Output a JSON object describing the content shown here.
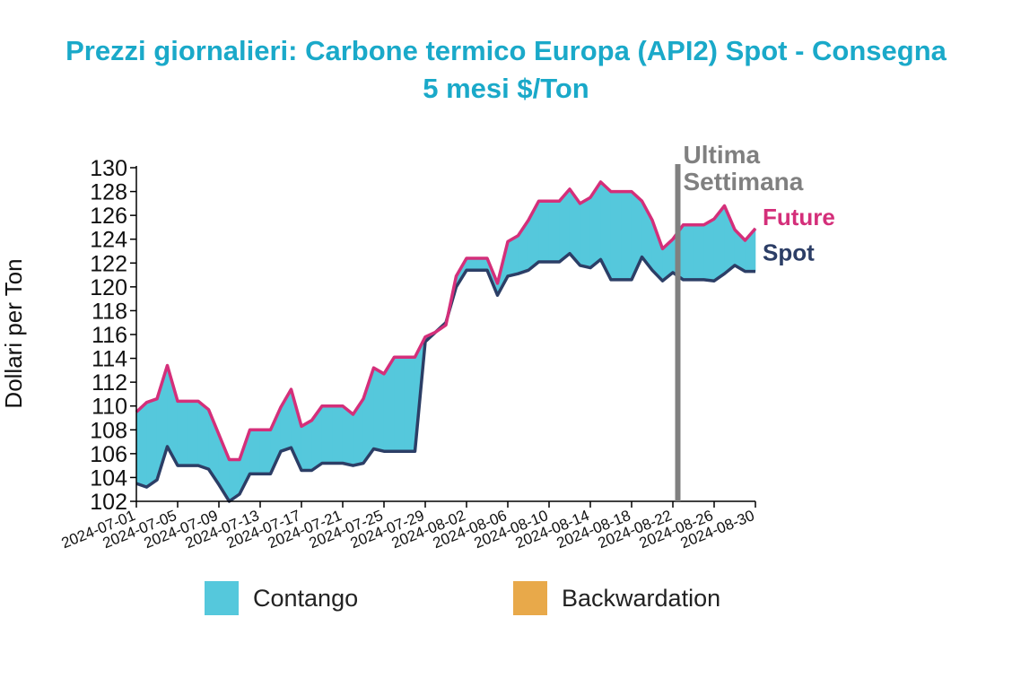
{
  "title_lines": [
    "Prezzi giornalieri: Carbone termico Europa (API2) Spot - Consegna",
    "5 mesi $/Ton"
  ],
  "colors": {
    "title": "#1aa9c9",
    "contango": "#55c8dc",
    "backwardation": "#e8a94a",
    "future": "#d42f7a",
    "spot": "#2c3e66",
    "marker": "#808080"
  },
  "legend": [
    {
      "key": "contango",
      "label": "Contango"
    },
    {
      "key": "backwardation",
      "label": "Backwardation"
    }
  ],
  "chart_data": {
    "type": "area",
    "ylabel": "Dollari per Ton",
    "xlabel": "",
    "ylim": [
      102,
      130
    ],
    "yticks": [
      102,
      104,
      106,
      108,
      110,
      112,
      114,
      116,
      118,
      120,
      122,
      124,
      126,
      128,
      130
    ],
    "xtick_labels": [
      "2024-07-01",
      "2024-07-05",
      "2024-07-09",
      "2024-07-13",
      "2024-07-17",
      "2024-07-21",
      "2024-07-25",
      "2024-07-29",
      "2024-08-02",
      "2024-08-06",
      "2024-08-10",
      "2024-08-14",
      "2024-08-18",
      "2024-08-22",
      "2024-08-26",
      "2024-08-30"
    ],
    "x_range": [
      "2024-07-01",
      "2024-08-30"
    ],
    "series": [
      {
        "name": "Future",
        "points": [
          [
            "2024-07-01",
            109.5
          ],
          [
            "2024-07-02",
            110.3
          ],
          [
            "2024-07-03",
            110.6
          ],
          [
            "2024-07-04",
            113.4
          ],
          [
            "2024-07-05",
            110.4
          ],
          [
            "2024-07-06",
            110.4
          ],
          [
            "2024-07-07",
            110.4
          ],
          [
            "2024-07-08",
            109.7
          ],
          [
            "2024-07-09",
            107.6
          ],
          [
            "2024-07-10",
            105.5
          ],
          [
            "2024-07-11",
            105.5
          ],
          [
            "2024-07-12",
            108.0
          ],
          [
            "2024-07-13",
            108.0
          ],
          [
            "2024-07-14",
            108.0
          ],
          [
            "2024-07-15",
            109.9
          ],
          [
            "2024-07-16",
            111.4
          ],
          [
            "2024-07-17",
            108.3
          ],
          [
            "2024-07-18",
            108.8
          ],
          [
            "2024-07-19",
            110.0
          ],
          [
            "2024-07-20",
            110.0
          ],
          [
            "2024-07-21",
            110.0
          ],
          [
            "2024-07-22",
            109.3
          ],
          [
            "2024-07-23",
            110.6
          ],
          [
            "2024-07-24",
            113.2
          ],
          [
            "2024-07-25",
            112.7
          ],
          [
            "2024-07-26",
            114.1
          ],
          [
            "2024-07-27",
            114.1
          ],
          [
            "2024-07-28",
            114.1
          ],
          [
            "2024-07-29",
            115.8
          ],
          [
            "2024-07-30",
            116.2
          ],
          [
            "2024-07-31",
            116.8
          ],
          [
            "2024-08-01",
            120.9
          ],
          [
            "2024-08-02",
            122.4
          ],
          [
            "2024-08-03",
            122.4
          ],
          [
            "2024-08-04",
            122.4
          ],
          [
            "2024-08-05",
            120.3
          ],
          [
            "2024-08-06",
            123.8
          ],
          [
            "2024-08-07",
            124.3
          ],
          [
            "2024-08-08",
            125.6
          ],
          [
            "2024-08-09",
            127.2
          ],
          [
            "2024-08-10",
            127.2
          ],
          [
            "2024-08-11",
            127.2
          ],
          [
            "2024-08-12",
            128.2
          ],
          [
            "2024-08-13",
            127.0
          ],
          [
            "2024-08-14",
            127.5
          ],
          [
            "2024-08-15",
            128.8
          ],
          [
            "2024-08-16",
            128.0
          ],
          [
            "2024-08-17",
            128.0
          ],
          [
            "2024-08-18",
            128.0
          ],
          [
            "2024-08-19",
            127.2
          ],
          [
            "2024-08-20",
            125.6
          ],
          [
            "2024-08-21",
            123.2
          ],
          [
            "2024-08-22",
            124.0
          ],
          [
            "2024-08-23",
            125.2
          ],
          [
            "2024-08-24",
            125.2
          ],
          [
            "2024-08-25",
            125.2
          ],
          [
            "2024-08-26",
            125.7
          ],
          [
            "2024-08-27",
            126.8
          ],
          [
            "2024-08-28",
            124.8
          ],
          [
            "2024-08-29",
            123.9
          ],
          [
            "2024-08-30",
            124.9
          ]
        ]
      },
      {
        "name": "Spot",
        "points": [
          [
            "2024-07-01",
            103.5
          ],
          [
            "2024-07-02",
            103.2
          ],
          [
            "2024-07-03",
            103.8
          ],
          [
            "2024-07-04",
            106.6
          ],
          [
            "2024-07-05",
            105.0
          ],
          [
            "2024-07-06",
            105.0
          ],
          [
            "2024-07-07",
            105.0
          ],
          [
            "2024-07-08",
            104.7
          ],
          [
            "2024-07-09",
            103.4
          ],
          [
            "2024-07-10",
            102.0
          ],
          [
            "2024-07-11",
            102.6
          ],
          [
            "2024-07-12",
            104.3
          ],
          [
            "2024-07-13",
            104.3
          ],
          [
            "2024-07-14",
            104.3
          ],
          [
            "2024-07-15",
            106.2
          ],
          [
            "2024-07-16",
            106.5
          ],
          [
            "2024-07-17",
            104.6
          ],
          [
            "2024-07-18",
            104.6
          ],
          [
            "2024-07-19",
            105.2
          ],
          [
            "2024-07-20",
            105.2
          ],
          [
            "2024-07-21",
            105.2
          ],
          [
            "2024-07-22",
            105.0
          ],
          [
            "2024-07-23",
            105.2
          ],
          [
            "2024-07-24",
            106.4
          ],
          [
            "2024-07-25",
            106.2
          ],
          [
            "2024-07-26",
            106.2
          ],
          [
            "2024-07-27",
            106.2
          ],
          [
            "2024-07-28",
            106.2
          ],
          [
            "2024-07-29",
            115.4
          ],
          [
            "2024-07-30",
            116.2
          ],
          [
            "2024-07-31",
            117.0
          ],
          [
            "2024-08-01",
            120.0
          ],
          [
            "2024-08-02",
            121.4
          ],
          [
            "2024-08-03",
            121.4
          ],
          [
            "2024-08-04",
            121.4
          ],
          [
            "2024-08-05",
            119.3
          ],
          [
            "2024-08-06",
            120.9
          ],
          [
            "2024-08-07",
            121.1
          ],
          [
            "2024-08-08",
            121.4
          ],
          [
            "2024-08-09",
            122.1
          ],
          [
            "2024-08-10",
            122.1
          ],
          [
            "2024-08-11",
            122.1
          ],
          [
            "2024-08-12",
            122.8
          ],
          [
            "2024-08-13",
            121.8
          ],
          [
            "2024-08-14",
            121.6
          ],
          [
            "2024-08-15",
            122.3
          ],
          [
            "2024-08-16",
            120.6
          ],
          [
            "2024-08-17",
            120.6
          ],
          [
            "2024-08-18",
            120.6
          ],
          [
            "2024-08-19",
            122.5
          ],
          [
            "2024-08-20",
            121.4
          ],
          [
            "2024-08-21",
            120.5
          ],
          [
            "2024-08-22",
            121.2
          ],
          [
            "2024-08-23",
            120.6
          ],
          [
            "2024-08-24",
            120.6
          ],
          [
            "2024-08-25",
            120.6
          ],
          [
            "2024-08-26",
            120.5
          ],
          [
            "2024-08-27",
            121.1
          ],
          [
            "2024-08-28",
            121.8
          ],
          [
            "2024-08-29",
            121.3
          ],
          [
            "2024-08-30",
            121.3
          ]
        ]
      }
    ],
    "annotations": [
      {
        "type": "vline",
        "x": "2024-08-23",
        "text_lines": [
          "Ultima",
          "Settimana"
        ]
      }
    ],
    "end_labels": [
      "Future",
      "Spot"
    ],
    "grid": false,
    "legend_position": "bottom"
  }
}
